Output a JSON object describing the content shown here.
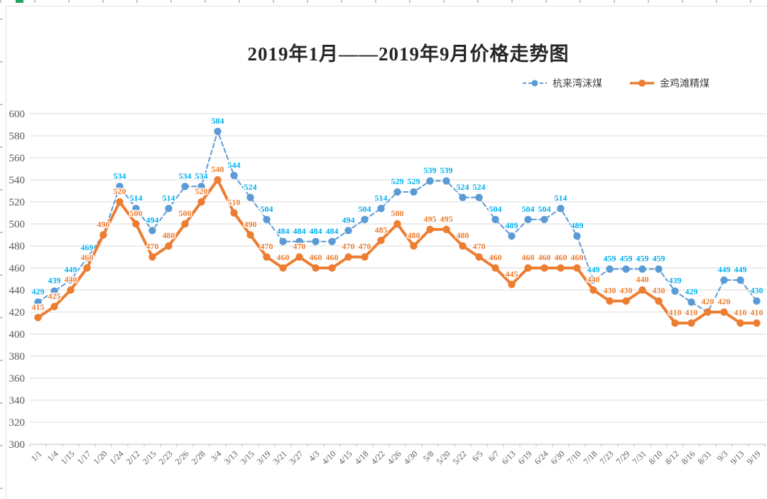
{
  "title": "2019年1月——2019年9月价格走势图",
  "chart_data": {
    "type": "line",
    "title": "2019年1月——2019年9月价格走势图",
    "categories": [
      "1/1",
      "1/4",
      "1/15",
      "1/17",
      "1/20",
      "1/24",
      "2/12",
      "2/15",
      "2/23",
      "2/26",
      "2/28",
      "3/4",
      "3/13",
      "3/15",
      "3/19",
      "3/21",
      "3/27",
      "4/3",
      "4/10",
      "4/15",
      "4/18",
      "4/22",
      "4/26",
      "4/30",
      "5/8",
      "5/20",
      "5/22",
      "6/5",
      "6/7",
      "6/13",
      "6/19",
      "6/24",
      "6/30",
      "7/10",
      "7/18",
      "7/23",
      "7/29",
      "7/31",
      "8/10",
      "8/12",
      "8/16",
      "8/31",
      "9/3",
      "9/13",
      "9/19"
    ],
    "series": [
      {
        "name": "杭来湾沫煤",
        "color": "#5B9BD5",
        "label_color": "#00B0F0",
        "line_style": "dashed",
        "marker": "circle",
        "values": [
          429,
          439,
          449,
          469,
          490,
          534,
          514,
          494,
          514,
          534,
          534,
          584,
          544,
          524,
          504,
          484,
          484,
          484,
          484,
          494,
          504,
          514,
          529,
          529,
          539,
          539,
          524,
          524,
          504,
          489,
          504,
          504,
          514,
          489,
          449,
          459,
          459,
          459,
          459,
          439,
          429,
          420,
          449,
          449,
          430
        ]
      },
      {
        "name": "金鸡滩精煤",
        "color": "#ED7D31",
        "label_color": "#ED7D31",
        "line_style": "solid",
        "marker": "circle",
        "values": [
          415,
          425,
          440,
          460,
          490,
          520,
          500,
          470,
          480,
          500,
          520,
          540,
          510,
          490,
          470,
          460,
          470,
          460,
          460,
          470,
          470,
          485,
          500,
          480,
          495,
          495,
          480,
          470,
          460,
          445,
          460,
          460,
          460,
          460,
          440,
          430,
          430,
          440,
          430,
          410,
          410,
          420,
          420,
          410,
          410
        ]
      }
    ],
    "ylim": [
      300,
      600
    ],
    "yticks": [
      300,
      320,
      340,
      360,
      380,
      400,
      420,
      440,
      460,
      480,
      500,
      520,
      540,
      560,
      580,
      600
    ],
    "grid": true,
    "legend_position": "top-right",
    "data_labels": true
  },
  "colors": {
    "grid": "#D9D9D9",
    "axis": "#BFBFBF",
    "tick_text": "#595959",
    "title_text": "#262626",
    "legend_text": "#404040",
    "excel_selection_green": "#21A366",
    "background": "#FFFFFF"
  }
}
